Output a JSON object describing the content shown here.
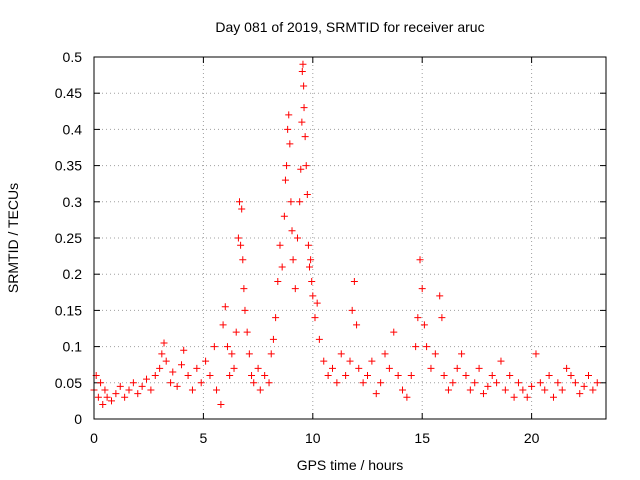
{
  "chart_data": {
    "type": "scatter",
    "title": "Day 081 of 2019, SRMTID for receiver aruc",
    "xlabel": "GPS time / hours",
    "ylabel": "SRMTID / TECUs",
    "xlim": [
      0,
      23.4
    ],
    "ylim": [
      0,
      0.5
    ],
    "x_ticks": [
      0,
      5,
      10,
      15,
      20
    ],
    "y_ticks": [
      0,
      0.05,
      0.1,
      0.15,
      0.2,
      0.25,
      0.3,
      0.35,
      0.4,
      0.45,
      0.5
    ],
    "x_tick_labels": [
      "0",
      "5",
      "10",
      "15",
      "20"
    ],
    "y_tick_labels": [
      "0",
      "0.05",
      "0.1",
      "0.15",
      "0.2",
      "0.25",
      "0.3",
      "0.35",
      "0.4",
      "0.45",
      "0.5"
    ],
    "grid": true,
    "marker": "+",
    "color": "#ff0000",
    "series": [
      {
        "name": "SRMTID",
        "points": [
          [
            0.0,
            0.04
          ],
          [
            0.1,
            0.06
          ],
          [
            0.2,
            0.03
          ],
          [
            0.3,
            0.05
          ],
          [
            0.4,
            0.02
          ],
          [
            0.5,
            0.04
          ],
          [
            0.6,
            0.03
          ],
          [
            0.8,
            0.025
          ],
          [
            1.0,
            0.035
          ],
          [
            1.2,
            0.045
          ],
          [
            1.4,
            0.03
          ],
          [
            1.6,
            0.04
          ],
          [
            1.8,
            0.05
          ],
          [
            2.0,
            0.035
          ],
          [
            2.2,
            0.045
          ],
          [
            2.4,
            0.055
          ],
          [
            2.6,
            0.04
          ],
          [
            2.8,
            0.06
          ],
          [
            3.0,
            0.07
          ],
          [
            3.1,
            0.09
          ],
          [
            3.2,
            0.105
          ],
          [
            3.3,
            0.08
          ],
          [
            3.5,
            0.05
          ],
          [
            3.6,
            0.065
          ],
          [
            3.8,
            0.045
          ],
          [
            4.0,
            0.075
          ],
          [
            4.1,
            0.095
          ],
          [
            4.3,
            0.06
          ],
          [
            4.5,
            0.04
          ],
          [
            4.7,
            0.07
          ],
          [
            4.9,
            0.05
          ],
          [
            5.1,
            0.08
          ],
          [
            5.3,
            0.06
          ],
          [
            5.5,
            0.1
          ],
          [
            5.6,
            0.04
          ],
          [
            5.8,
            0.02
          ],
          [
            5.9,
            0.13
          ],
          [
            6.0,
            0.155
          ],
          [
            6.1,
            0.1
          ],
          [
            6.2,
            0.06
          ],
          [
            6.3,
            0.09
          ],
          [
            6.4,
            0.07
          ],
          [
            6.5,
            0.12
          ],
          [
            6.6,
            0.25
          ],
          [
            6.65,
            0.3
          ],
          [
            6.7,
            0.24
          ],
          [
            6.75,
            0.29
          ],
          [
            6.8,
            0.22
          ],
          [
            6.85,
            0.18
          ],
          [
            6.9,
            0.15
          ],
          [
            7.0,
            0.12
          ],
          [
            7.1,
            0.09
          ],
          [
            7.2,
            0.06
          ],
          [
            7.3,
            0.05
          ],
          [
            7.5,
            0.07
          ],
          [
            7.6,
            0.04
          ],
          [
            7.8,
            0.06
          ],
          [
            8.0,
            0.05
          ],
          [
            8.1,
            0.09
          ],
          [
            8.2,
            0.11
          ],
          [
            8.3,
            0.14
          ],
          [
            8.4,
            0.19
          ],
          [
            8.5,
            0.24
          ],
          [
            8.6,
            0.21
          ],
          [
            8.7,
            0.28
          ],
          [
            8.75,
            0.33
          ],
          [
            8.8,
            0.35
          ],
          [
            8.85,
            0.4
          ],
          [
            8.9,
            0.42
          ],
          [
            8.95,
            0.38
          ],
          [
            9.0,
            0.3
          ],
          [
            9.05,
            0.26
          ],
          [
            9.1,
            0.22
          ],
          [
            9.2,
            0.18
          ],
          [
            9.3,
            0.25
          ],
          [
            9.4,
            0.3
          ],
          [
            9.45,
            0.345
          ],
          [
            9.5,
            0.41
          ],
          [
            9.52,
            0.48
          ],
          [
            9.55,
            0.49
          ],
          [
            9.58,
            0.46
          ],
          [
            9.6,
            0.43
          ],
          [
            9.65,
            0.39
          ],
          [
            9.7,
            0.35
          ],
          [
            9.75,
            0.31
          ],
          [
            9.8,
            0.24
          ],
          [
            9.85,
            0.21
          ],
          [
            9.9,
            0.22
          ],
          [
            9.95,
            0.19
          ],
          [
            10.0,
            0.17
          ],
          [
            10.1,
            0.14
          ],
          [
            10.2,
            0.16
          ],
          [
            10.3,
            0.11
          ],
          [
            10.5,
            0.08
          ],
          [
            10.7,
            0.06
          ],
          [
            10.9,
            0.07
          ],
          [
            11.1,
            0.05
          ],
          [
            11.3,
            0.09
          ],
          [
            11.5,
            0.06
          ],
          [
            11.7,
            0.08
          ],
          [
            11.8,
            0.15
          ],
          [
            11.9,
            0.19
          ],
          [
            12.0,
            0.13
          ],
          [
            12.1,
            0.07
          ],
          [
            12.3,
            0.05
          ],
          [
            12.5,
            0.06
          ],
          [
            12.7,
            0.08
          ],
          [
            12.9,
            0.035
          ],
          [
            13.1,
            0.05
          ],
          [
            13.3,
            0.09
          ],
          [
            13.5,
            0.07
          ],
          [
            13.7,
            0.12
          ],
          [
            13.9,
            0.06
          ],
          [
            14.1,
            0.04
          ],
          [
            14.3,
            0.03
          ],
          [
            14.5,
            0.06
          ],
          [
            14.7,
            0.1
          ],
          [
            14.8,
            0.14
          ],
          [
            14.9,
            0.22
          ],
          [
            15.0,
            0.18
          ],
          [
            15.1,
            0.13
          ],
          [
            15.2,
            0.1
          ],
          [
            15.4,
            0.07
          ],
          [
            15.6,
            0.09
          ],
          [
            15.8,
            0.17
          ],
          [
            15.9,
            0.14
          ],
          [
            16.0,
            0.06
          ],
          [
            16.2,
            0.04
          ],
          [
            16.4,
            0.05
          ],
          [
            16.6,
            0.07
          ],
          [
            16.8,
            0.09
          ],
          [
            17.0,
            0.06
          ],
          [
            17.2,
            0.04
          ],
          [
            17.4,
            0.05
          ],
          [
            17.6,
            0.07
          ],
          [
            17.8,
            0.035
          ],
          [
            18.0,
            0.045
          ],
          [
            18.2,
            0.06
          ],
          [
            18.4,
            0.05
          ],
          [
            18.6,
            0.08
          ],
          [
            18.8,
            0.04
          ],
          [
            19.0,
            0.06
          ],
          [
            19.2,
            0.03
          ],
          [
            19.4,
            0.05
          ],
          [
            19.6,
            0.04
          ],
          [
            19.8,
            0.03
          ],
          [
            20.0,
            0.045
          ],
          [
            20.2,
            0.09
          ],
          [
            20.4,
            0.05
          ],
          [
            20.6,
            0.04
          ],
          [
            20.8,
            0.06
          ],
          [
            21.0,
            0.03
          ],
          [
            21.2,
            0.05
          ],
          [
            21.4,
            0.04
          ],
          [
            21.6,
            0.07
          ],
          [
            21.8,
            0.06
          ],
          [
            22.0,
            0.05
          ],
          [
            22.2,
            0.035
          ],
          [
            22.4,
            0.045
          ],
          [
            22.6,
            0.06
          ],
          [
            22.8,
            0.04
          ],
          [
            23.0,
            0.05
          ]
        ]
      }
    ]
  }
}
